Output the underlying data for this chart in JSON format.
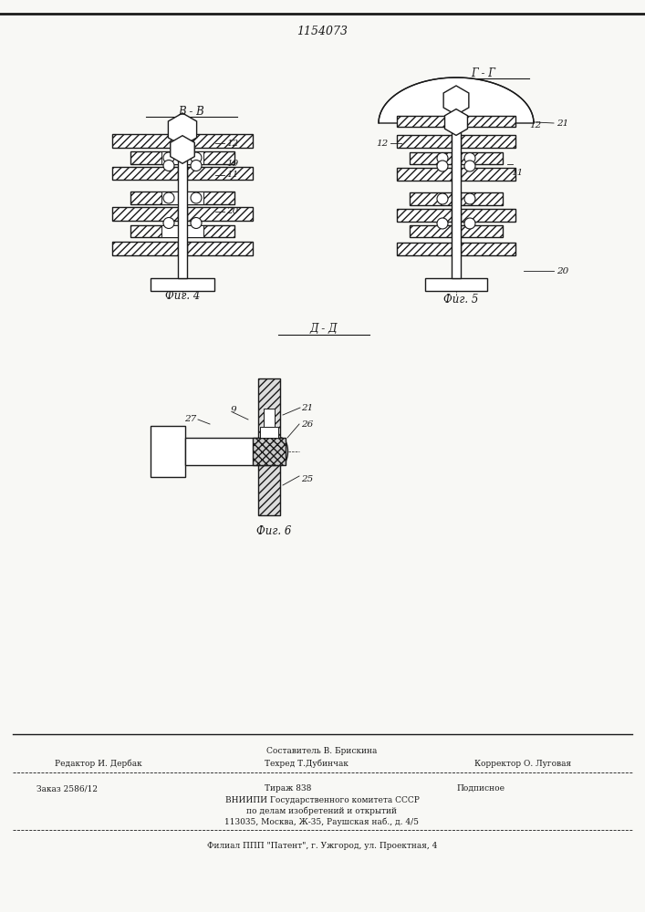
{
  "patent_number": "1154073",
  "background_color": "#f8f8f5",
  "line_color": "#1a1a1a",
  "fig4_label": "В - В",
  "fig5_label": "Г - Г",
  "fig6_label": "Д - Д",
  "fig4_caption": "Фиг. 4",
  "fig5_caption": "Фиг. 5",
  "fig6_caption": "Фиг. 6",
  "footer_sestavitel": "Составитель В. Брискина",
  "footer_redaktor": "Редактор И. Дербак",
  "footer_tehred": "Техред Т.Дубинчак",
  "footer_korrektor": "Корректор О. Луговая",
  "footer_zakaz": "Заказ 2586/12",
  "footer_tirazh": "Тираж 838",
  "footer_podpisnoe": "Подписное",
  "footer_vniipи": "ВНИИПИ Государственного комитета СССР",
  "footer_po_delam": "по делам изобретений и открытий",
  "footer_address": "113035, Москва, Ж-35, Раушская наб., д. 4/5",
  "footer_filial": "Филиал ППП \"Патент\", г. Ужгород, ул. Проектная, 4"
}
